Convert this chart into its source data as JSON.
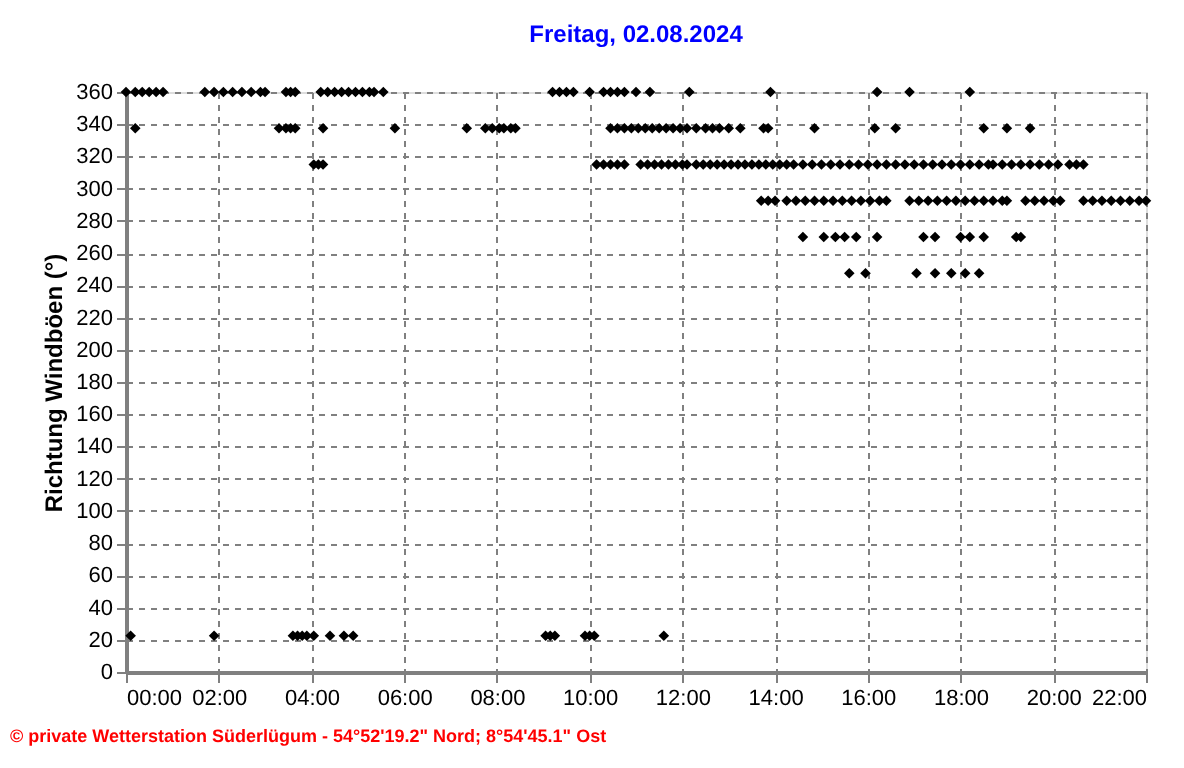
{
  "chart_data": {
    "type": "scatter",
    "title": "Freitag, 02.08.2024",
    "ylabel": "Richtung Windböen  (°)",
    "annotations": [
      "© private Wetterstation Süderlügum - 54°52'19.2\" Nord; 8°54'45.1\" Ost"
    ],
    "xlim": [
      0,
      22
    ],
    "ylim": [
      0,
      360
    ],
    "xticks": [
      {
        "value": 0,
        "label": "00:00"
      },
      {
        "value": 2,
        "label": "02:00"
      },
      {
        "value": 4,
        "label": "04:00"
      },
      {
        "value": 6,
        "label": "06:00"
      },
      {
        "value": 8,
        "label": "08:00"
      },
      {
        "value": 10,
        "label": "10:00"
      },
      {
        "value": 12,
        "label": "12:00"
      },
      {
        "value": 14,
        "label": "14:00"
      },
      {
        "value": 16,
        "label": "16:00"
      },
      {
        "value": 18,
        "label": "18:00"
      },
      {
        "value": 20,
        "label": "20:00"
      },
      {
        "value": 22,
        "label": "22:00"
      }
    ],
    "yticks": [
      0,
      20,
      40,
      60,
      80,
      100,
      120,
      140,
      160,
      180,
      200,
      220,
      240,
      260,
      280,
      300,
      320,
      340,
      360
    ],
    "grid": true,
    "legend": false,
    "marker": "diamond",
    "series": [
      {
        "color": "#000000",
        "x": [
          0.0,
          0.2,
          0.35,
          0.5,
          0.65,
          0.8,
          1.7,
          1.9,
          2.1,
          2.3,
          2.5,
          2.7,
          2.9,
          3.0,
          3.45,
          3.55,
          3.65,
          4.2,
          4.35,
          4.5,
          4.65,
          4.8,
          4.95,
          5.1,
          5.25,
          5.35,
          5.55,
          9.2,
          9.35,
          9.5,
          9.65,
          10.0,
          10.3,
          10.45,
          10.6,
          10.75,
          11.0,
          11.3,
          12.15,
          13.9,
          16.2,
          16.9,
          18.2,
          0.2,
          3.3,
          3.45,
          3.55,
          3.65,
          4.25,
          5.8,
          7.35,
          7.75,
          7.9,
          8.05,
          8.15,
          8.3,
          8.4,
          10.45,
          10.6,
          10.75,
          10.9,
          11.05,
          11.2,
          11.35,
          11.5,
          11.65,
          11.8,
          11.95,
          12.1,
          12.3,
          12.5,
          12.65,
          12.8,
          13.0,
          13.25,
          13.75,
          13.85,
          14.85,
          16.15,
          16.6,
          18.5,
          19.0,
          19.5,
          4.05,
          4.15,
          4.25,
          10.15,
          10.3,
          10.45,
          10.6,
          10.75,
          11.1,
          11.25,
          11.4,
          11.55,
          11.7,
          11.85,
          12.0,
          12.1,
          12.3,
          12.45,
          12.6,
          12.75,
          12.9,
          13.05,
          13.2,
          13.35,
          13.5,
          13.65,
          13.8,
          13.95,
          14.1,
          14.25,
          14.4,
          14.6,
          14.8,
          15.0,
          15.2,
          15.4,
          15.6,
          15.8,
          16.0,
          16.2,
          16.4,
          16.6,
          16.8,
          17.0,
          17.2,
          17.4,
          17.6,
          17.8,
          18.0,
          18.2,
          18.4,
          18.6,
          18.7,
          18.9,
          19.1,
          19.3,
          19.5,
          19.7,
          19.9,
          20.1,
          20.35,
          20.5,
          20.65,
          13.7,
          13.85,
          14.0,
          14.25,
          14.45,
          14.65,
          14.85,
          15.05,
          15.25,
          15.45,
          15.65,
          15.85,
          16.05,
          16.25,
          16.4,
          16.9,
          17.1,
          17.3,
          17.5,
          17.7,
          17.9,
          18.1,
          18.3,
          18.5,
          18.7,
          18.9,
          19.0,
          19.4,
          19.6,
          19.8,
          20.0,
          20.15,
          20.65,
          20.85,
          21.05,
          21.25,
          21.45,
          21.65,
          21.85,
          22.0,
          14.6,
          15.05,
          15.3,
          15.5,
          15.75,
          16.2,
          17.2,
          17.45,
          18.0,
          18.2,
          18.5,
          19.2,
          19.3,
          15.6,
          15.95,
          17.05,
          17.45,
          17.8,
          18.1,
          18.4,
          0.1,
          1.9,
          3.6,
          3.7,
          3.8,
          3.9,
          4.05,
          4.4,
          4.7,
          4.9,
          9.05,
          9.15,
          9.25,
          9.9,
          10.0,
          10.1,
          11.6
        ],
        "values": [
          360,
          360,
          360,
          360,
          360,
          360,
          360,
          360,
          360,
          360,
          360,
          360,
          360,
          360,
          360,
          360,
          360,
          360,
          360,
          360,
          360,
          360,
          360,
          360,
          360,
          360,
          360,
          360,
          360,
          360,
          360,
          360,
          360,
          360,
          360,
          360,
          360,
          360,
          360,
          360,
          360,
          360,
          360,
          337.5,
          337.5,
          337.5,
          337.5,
          337.5,
          337.5,
          337.5,
          337.5,
          337.5,
          337.5,
          337.5,
          337.5,
          337.5,
          337.5,
          337.5,
          337.5,
          337.5,
          337.5,
          337.5,
          337.5,
          337.5,
          337.5,
          337.5,
          337.5,
          337.5,
          337.5,
          337.5,
          337.5,
          337.5,
          337.5,
          337.5,
          337.5,
          337.5,
          337.5,
          337.5,
          337.5,
          337.5,
          337.5,
          337.5,
          337.5,
          315,
          315,
          315,
          315,
          315,
          315,
          315,
          315,
          315,
          315,
          315,
          315,
          315,
          315,
          315,
          315,
          315,
          315,
          315,
          315,
          315,
          315,
          315,
          315,
          315,
          315,
          315,
          315,
          315,
          315,
          315,
          315,
          315,
          315,
          315,
          315,
          315,
          315,
          315,
          315,
          315,
          315,
          315,
          315,
          315,
          315,
          315,
          315,
          315,
          315,
          315,
          315,
          315,
          315,
          315,
          315,
          315,
          315,
          315,
          315,
          315,
          315,
          315,
          292.5,
          292.5,
          292.5,
          292.5,
          292.5,
          292.5,
          292.5,
          292.5,
          292.5,
          292.5,
          292.5,
          292.5,
          292.5,
          292.5,
          292.5,
          292.5,
          292.5,
          292.5,
          292.5,
          292.5,
          292.5,
          292.5,
          292.5,
          292.5,
          292.5,
          292.5,
          292.5,
          292.5,
          292.5,
          292.5,
          292.5,
          292.5,
          292.5,
          292.5,
          292.5,
          292.5,
          292.5,
          292.5,
          292.5,
          292.5,
          270,
          270,
          270,
          270,
          270,
          270,
          270,
          270,
          270,
          270,
          270,
          270,
          270,
          247.5,
          247.5,
          247.5,
          247.5,
          247.5,
          247.5,
          247.5,
          22.5,
          22.5,
          22.5,
          22.5,
          22.5,
          22.5,
          22.5,
          22.5,
          22.5,
          22.5,
          22.5,
          22.5,
          22.5,
          22.5,
          22.5,
          22.5,
          22.5
        ]
      }
    ]
  }
}
